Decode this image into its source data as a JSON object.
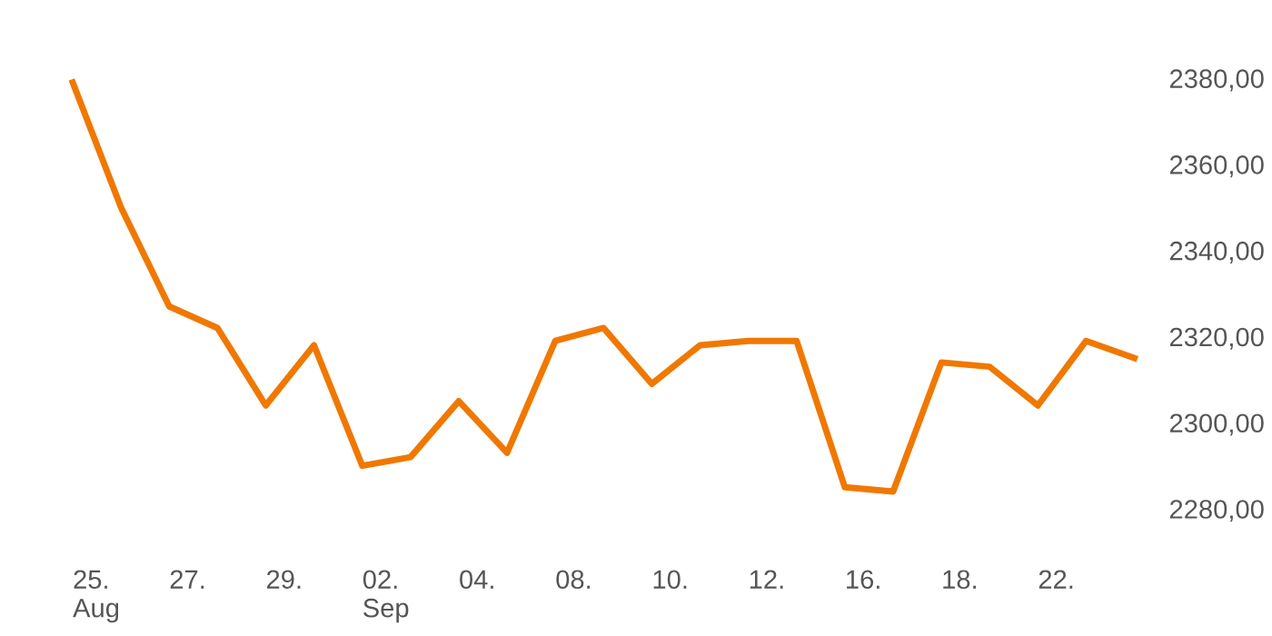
{
  "chart_data": {
    "type": "line",
    "categories": [
      "25.\nAug",
      null,
      "27.",
      null,
      "29.",
      null,
      "02.\nSep",
      null,
      "04.",
      null,
      "08.",
      null,
      "10.",
      null,
      "12.",
      null,
      "16.",
      null,
      "18.",
      null,
      "22.",
      null,
      null
    ],
    "series": [
      {
        "color": "#f07800",
        "values": [
          2379,
          2350,
          2327,
          2322,
          2304,
          2318,
          2290,
          2292,
          2305,
          2293,
          2319,
          2322,
          2309,
          2318,
          2319,
          2319,
          2285,
          2284,
          2314,
          2313,
          2304,
          2319,
          2315
        ]
      }
    ],
    "ylim": [
      2280,
      2380
    ],
    "yticks": [
      {
        "value": 2280,
        "label": "2280,00"
      },
      {
        "value": 2300,
        "label": "2300,00"
      },
      {
        "value": 2320,
        "label": "2320,00"
      },
      {
        "value": 2340,
        "label": "2340,00"
      },
      {
        "value": 2360,
        "label": "2360,00"
      },
      {
        "value": 2380,
        "label": "2380,00"
      }
    ],
    "grid": false,
    "legend": false,
    "marker": "none",
    "line_style": "solid"
  }
}
